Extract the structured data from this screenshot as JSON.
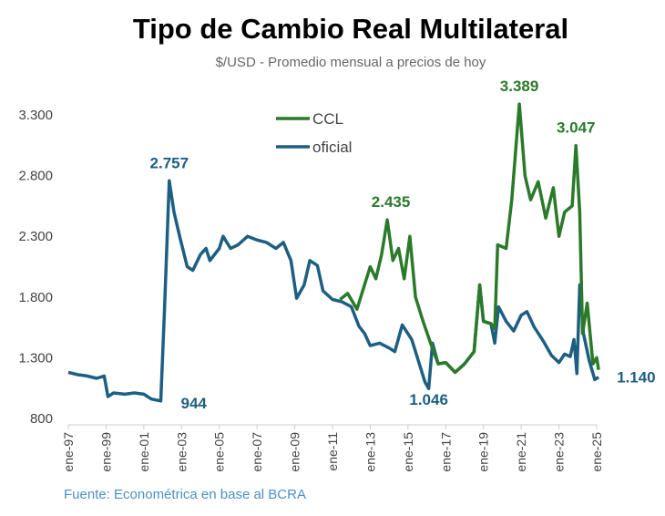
{
  "chart_data": {
    "type": "line",
    "title": "Tipo de Cambio Real Multilateral",
    "subtitle": "$/USD - Promedio mensual a precios de hoy",
    "source": "Fuente: Econométrica en base al BCRA",
    "xlabel": "",
    "ylabel": "",
    "ylim": [
      800,
      3300
    ],
    "yticks": [
      800,
      1300,
      1800,
      2300,
      2800,
      3300
    ],
    "ytick_labels": [
      "800",
      "1.300",
      "1.800",
      "2.300",
      "2.800",
      "3.300"
    ],
    "xlim": [
      1997,
      2025
    ],
    "xticks": [
      1997,
      1999,
      2001,
      2003,
      2005,
      2007,
      2009,
      2011,
      2013,
      2015,
      2017,
      2019,
      2021,
      2023,
      2025
    ],
    "xtick_labels": [
      "ene-97",
      "ene-99",
      "ene-01",
      "ene-03",
      "ene-05",
      "ene-07",
      "ene-09",
      "ene-11",
      "ene-13",
      "ene-15",
      "ene-17",
      "ene-19",
      "ene-21",
      "ene-23",
      "ene-25"
    ],
    "grid": false,
    "legend": "top-center",
    "series": [
      {
        "name": "CCL",
        "color": "#2a7a2a",
        "points": [
          [
            2011.4,
            1780
          ],
          [
            2011.8,
            1830
          ],
          [
            2012.3,
            1700
          ],
          [
            2012.6,
            1850
          ],
          [
            2013.0,
            2050
          ],
          [
            2013.3,
            1950
          ],
          [
            2013.6,
            2150
          ],
          [
            2013.9,
            2435
          ],
          [
            2014.2,
            2100
          ],
          [
            2014.5,
            2200
          ],
          [
            2014.8,
            1950
          ],
          [
            2015.1,
            2300
          ],
          [
            2015.4,
            1800
          ],
          [
            2015.8,
            1600
          ],
          [
            2016.2,
            1420
          ],
          [
            2016.6,
            1250
          ],
          [
            2017.0,
            1260
          ],
          [
            2017.5,
            1180
          ],
          [
            2018.0,
            1250
          ],
          [
            2018.5,
            1350
          ],
          [
            2018.8,
            1900
          ],
          [
            2019.0,
            1600
          ],
          [
            2019.4,
            1580
          ],
          [
            2019.6,
            1540
          ],
          [
            2019.75,
            2230
          ],
          [
            2020.2,
            2200
          ],
          [
            2020.5,
            2600
          ],
          [
            2020.9,
            3389
          ],
          [
            2021.2,
            2800
          ],
          [
            2021.5,
            2600
          ],
          [
            2021.9,
            2750
          ],
          [
            2022.3,
            2450
          ],
          [
            2022.7,
            2700
          ],
          [
            2023.0,
            2300
          ],
          [
            2023.3,
            2500
          ],
          [
            2023.7,
            2550
          ],
          [
            2023.9,
            3047
          ],
          [
            2024.1,
            2500
          ],
          [
            2024.25,
            1500
          ],
          [
            2024.5,
            1750
          ],
          [
            2024.8,
            1250
          ],
          [
            2025.0,
            1300
          ],
          [
            2025.1,
            1200
          ]
        ]
      },
      {
        "name": "oficial",
        "color": "#1d5f82",
        "points": [
          [
            1997.0,
            1180
          ],
          [
            1997.5,
            1160
          ],
          [
            1998.0,
            1150
          ],
          [
            1998.5,
            1130
          ],
          [
            1998.9,
            1150
          ],
          [
            1999.1,
            980
          ],
          [
            1999.4,
            1010
          ],
          [
            2000.0,
            1000
          ],
          [
            2000.5,
            1010
          ],
          [
            2001.0,
            1000
          ],
          [
            2001.4,
            960
          ],
          [
            2001.9,
            944
          ],
          [
            2002.1,
            1700
          ],
          [
            2002.35,
            2757
          ],
          [
            2002.6,
            2500
          ],
          [
            2002.9,
            2300
          ],
          [
            2003.3,
            2050
          ],
          [
            2003.6,
            2020
          ],
          [
            2004.0,
            2150
          ],
          [
            2004.3,
            2200
          ],
          [
            2004.5,
            2100
          ],
          [
            2005.0,
            2200
          ],
          [
            2005.2,
            2300
          ],
          [
            2005.6,
            2200
          ],
          [
            2006.0,
            2230
          ],
          [
            2006.5,
            2300
          ],
          [
            2007.0,
            2270
          ],
          [
            2007.5,
            2250
          ],
          [
            2008.0,
            2200
          ],
          [
            2008.4,
            2250
          ],
          [
            2008.8,
            2100
          ],
          [
            2009.1,
            1790
          ],
          [
            2009.5,
            1900
          ],
          [
            2009.8,
            2100
          ],
          [
            2010.2,
            2060
          ],
          [
            2010.5,
            1850
          ],
          [
            2011.0,
            1780
          ],
          [
            2011.5,
            1760
          ],
          [
            2012.0,
            1720
          ],
          [
            2012.4,
            1560
          ],
          [
            2012.7,
            1500
          ],
          [
            2013.0,
            1400
          ],
          [
            2013.5,
            1420
          ],
          [
            2014.0,
            1380
          ],
          [
            2014.3,
            1350
          ],
          [
            2014.7,
            1570
          ],
          [
            2015.2,
            1450
          ],
          [
            2015.6,
            1250
          ],
          [
            2015.9,
            1100
          ],
          [
            2016.1,
            1046
          ],
          [
            2016.3,
            1420
          ],
          [
            2016.6,
            1250
          ],
          [
            2017.0,
            1260
          ],
          [
            2017.5,
            1180
          ],
          [
            2018.0,
            1250
          ],
          [
            2018.5,
            1350
          ],
          [
            2018.8,
            1900
          ],
          [
            2019.0,
            1600
          ],
          [
            2019.4,
            1580
          ],
          [
            2019.6,
            1420
          ],
          [
            2019.8,
            1720
          ],
          [
            2020.2,
            1600
          ],
          [
            2020.6,
            1520
          ],
          [
            2021.0,
            1650
          ],
          [
            2021.3,
            1680
          ],
          [
            2021.7,
            1550
          ],
          [
            2022.2,
            1430
          ],
          [
            2022.6,
            1320
          ],
          [
            2023.0,
            1260
          ],
          [
            2023.3,
            1330
          ],
          [
            2023.6,
            1310
          ],
          [
            2023.8,
            1450
          ],
          [
            2023.95,
            1170
          ],
          [
            2024.1,
            1900
          ],
          [
            2024.3,
            1500
          ],
          [
            2024.6,
            1280
          ],
          [
            2024.9,
            1120
          ],
          [
            2025.1,
            1140
          ]
        ]
      }
    ],
    "annotations": [
      {
        "text": "2.757",
        "x": 2002.35,
        "y": 2757,
        "series": "oficial"
      },
      {
        "text": "944",
        "x": 2001.9,
        "y": 944,
        "series": "oficial"
      },
      {
        "text": "2.435",
        "x": 2013.9,
        "y": 2435,
        "series": "CCL"
      },
      {
        "text": "1.046",
        "x": 2016.1,
        "y": 1046,
        "series": "oficial"
      },
      {
        "text": "3.389",
        "x": 2020.9,
        "y": 3389,
        "series": "CCL"
      },
      {
        "text": "3.047",
        "x": 2023.9,
        "y": 3047,
        "series": "CCL"
      },
      {
        "text": "1.140",
        "x": 2025.1,
        "y": 1140,
        "series": "oficial"
      }
    ]
  }
}
